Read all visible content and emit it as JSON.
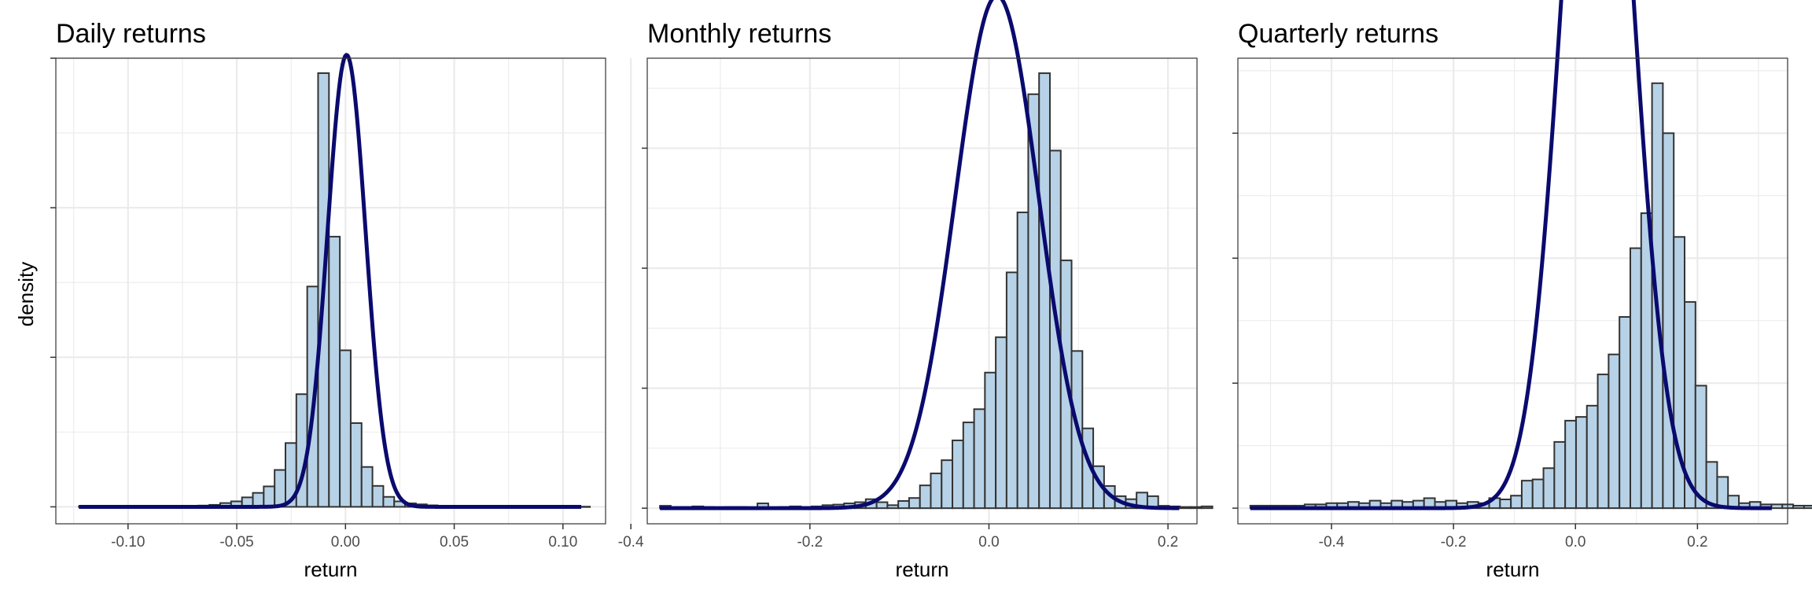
{
  "figure": {
    "ylabel": "density",
    "xlabel": "return"
  },
  "colors": {
    "bar_fill": "#b7d2e6",
    "bar_outline": "#333333",
    "density_line": "#0a0a6e",
    "grid": "#ebebeb"
  },
  "chart_data": [
    {
      "type": "bar",
      "title": "Daily returns",
      "xlabel": "return",
      "ylabel": "density",
      "xlim": [
        -0.1332,
        0.1196
      ],
      "ylim": [
        -1.7,
        45
      ],
      "x_ticks": [
        -0.1,
        -0.05,
        0.0,
        0.05,
        0.1
      ],
      "x_tick_labels": [
        "-0.10",
        "-0.05",
        "0.00",
        "0.05",
        "0.10"
      ],
      "y_ticks": [
        0,
        15,
        30,
        45
      ],
      "y_tick_labels": [
        "",
        "",
        "",
        ""
      ],
      "grid": true,
      "bins": {
        "start": -0.1226,
        "width": 0.005,
        "heights": [
          0.05,
          0.04,
          0.03,
          0.03,
          0.03,
          0.02,
          0.03,
          0.03,
          0.05,
          0.07,
          0.1,
          0.13,
          0.2,
          0.38,
          0.55,
          0.95,
          1.4,
          2.05,
          3.7,
          6.4,
          11.3,
          22.1,
          43.5,
          27.1,
          15.7,
          8.4,
          4.0,
          2.1,
          1.0,
          0.55,
          0.35,
          0.25,
          0.15,
          0.1,
          0.06,
          0.05,
          0.05,
          0.04,
          0.03,
          0.03,
          0.03,
          0.02,
          0.02,
          0.02,
          0.03,
          0.03,
          0.02
        ]
      },
      "density": {
        "mean": 0.0005,
        "sd": 0.0088,
        "x_range": [
          -0.1226,
          0.1084
        ]
      }
    },
    {
      "type": "bar",
      "title": "Monthly returns",
      "xlabel": "return",
      "ylabel": "density",
      "xlim": [
        -0.3817,
        0.2324
      ],
      "ylim": [
        -0.26,
        7.5
      ],
      "x_ticks": [
        -0.4,
        -0.2,
        0.0,
        0.2
      ],
      "x_tick_labels": [
        "-0.4",
        "-0.2",
        "0.0",
        "0.2"
      ],
      "y_ticks": [
        0,
        2,
        4,
        6
      ],
      "y_tick_labels": [
        "",
        "",
        "",
        ""
      ],
      "grid": true,
      "bins": {
        "start": -0.3675,
        "width": 0.0121,
        "heights": [
          0.04,
          0.02,
          0.02,
          0.03,
          0.02,
          0.01,
          0.02,
          0.02,
          0.01,
          0.08,
          0.01,
          0.02,
          0.03,
          0.02,
          0.03,
          0.05,
          0.06,
          0.08,
          0.1,
          0.15,
          0.1,
          0.05,
          0.12,
          0.17,
          0.38,
          0.58,
          0.8,
          1.13,
          1.43,
          1.65,
          2.26,
          2.85,
          3.93,
          4.93,
          6.9,
          7.25,
          5.96,
          4.13,
          2.62,
          1.33,
          0.7,
          0.37,
          0.2,
          0.15,
          0.26,
          0.2,
          0.04,
          0.03,
          0.02,
          0.02,
          0.03
        ]
      },
      "density": {
        "mean": 0.009,
        "sd": 0.0467,
        "x_range": [
          -0.3675,
          0.2125
        ]
      }
    },
    {
      "type": "bar",
      "title": "Quarterly returns",
      "xlabel": "return",
      "ylabel": "density",
      "xlim": [
        -0.5535,
        0.3478
      ],
      "ylim": [
        -0.125,
        3.6
      ],
      "x_ticks": [
        -0.4,
        -0.2,
        0.0,
        0.2
      ],
      "x_tick_labels": [
        "-0.4",
        "-0.2",
        "0.0",
        "0.2"
      ],
      "y_ticks": [
        0,
        1,
        2,
        3
      ],
      "y_tick_labels": [
        "",
        "",
        "",
        ""
      ],
      "grid": true,
      "bins": {
        "start": -0.5331,
        "width": 0.0178,
        "heights": [
          0.02,
          0.02,
          0.02,
          0.02,
          0.02,
          0.03,
          0.03,
          0.04,
          0.04,
          0.05,
          0.04,
          0.06,
          0.04,
          0.06,
          0.05,
          0.06,
          0.08,
          0.05,
          0.06,
          0.04,
          0.05,
          0.04,
          0.08,
          0.07,
          0.1,
          0.22,
          0.23,
          0.32,
          0.53,
          0.7,
          0.73,
          0.82,
          1.07,
          1.23,
          1.53,
          2.08,
          2.36,
          3.4,
          3.0,
          2.17,
          1.65,
          0.98,
          0.37,
          0.25,
          0.1,
          0.04,
          0.05,
          0.03,
          0.03,
          0.03,
          0.02,
          0.02,
          0.02
        ]
      },
      "density": {
        "mean": 0.036,
        "sd": 0.0568,
        "x_range": [
          -0.5331,
          0.3218
        ]
      }
    }
  ]
}
